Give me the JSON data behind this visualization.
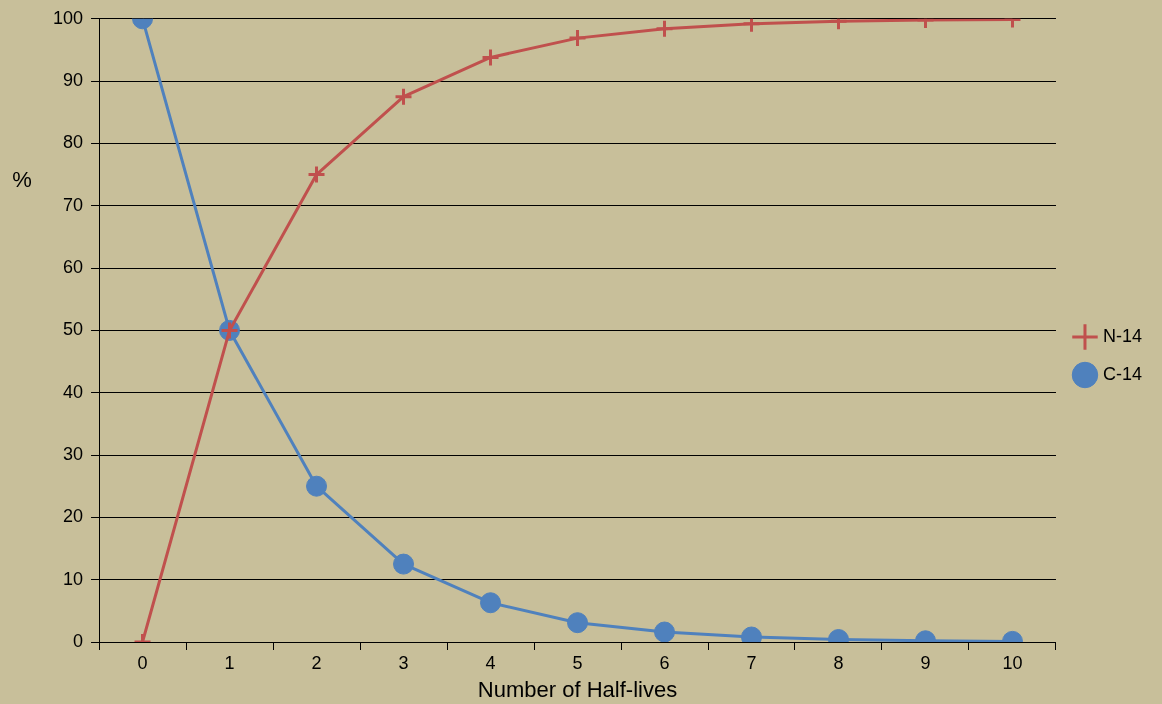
{
  "chart_data": {
    "type": "line",
    "xlabel": "Number of Half-lives",
    "ylabel": "%",
    "categories": [
      "0",
      "1",
      "2",
      "3",
      "4",
      "5",
      "6",
      "7",
      "8",
      "9",
      "10"
    ],
    "series": [
      {
        "name": "C-14",
        "color": "#4f81bd",
        "marker": "circle",
        "values": [
          100,
          50,
          25,
          12.5,
          6.3,
          3.1,
          1.6,
          0.8,
          0.4,
          0.2,
          0.1
        ]
      },
      {
        "name": "N-14",
        "color": "#c0504d",
        "marker": "cross",
        "values": [
          0,
          50,
          75,
          87.5,
          93.8,
          96.9,
          98.4,
          99.2,
          99.6,
          99.8,
          99.9
        ]
      }
    ],
    "ylim": [
      0,
      100
    ],
    "yticks": [
      0,
      10,
      20,
      30,
      40,
      50,
      60,
      70,
      80,
      90,
      100
    ],
    "grid": "y",
    "legend": "right",
    "line_style": "solid"
  }
}
